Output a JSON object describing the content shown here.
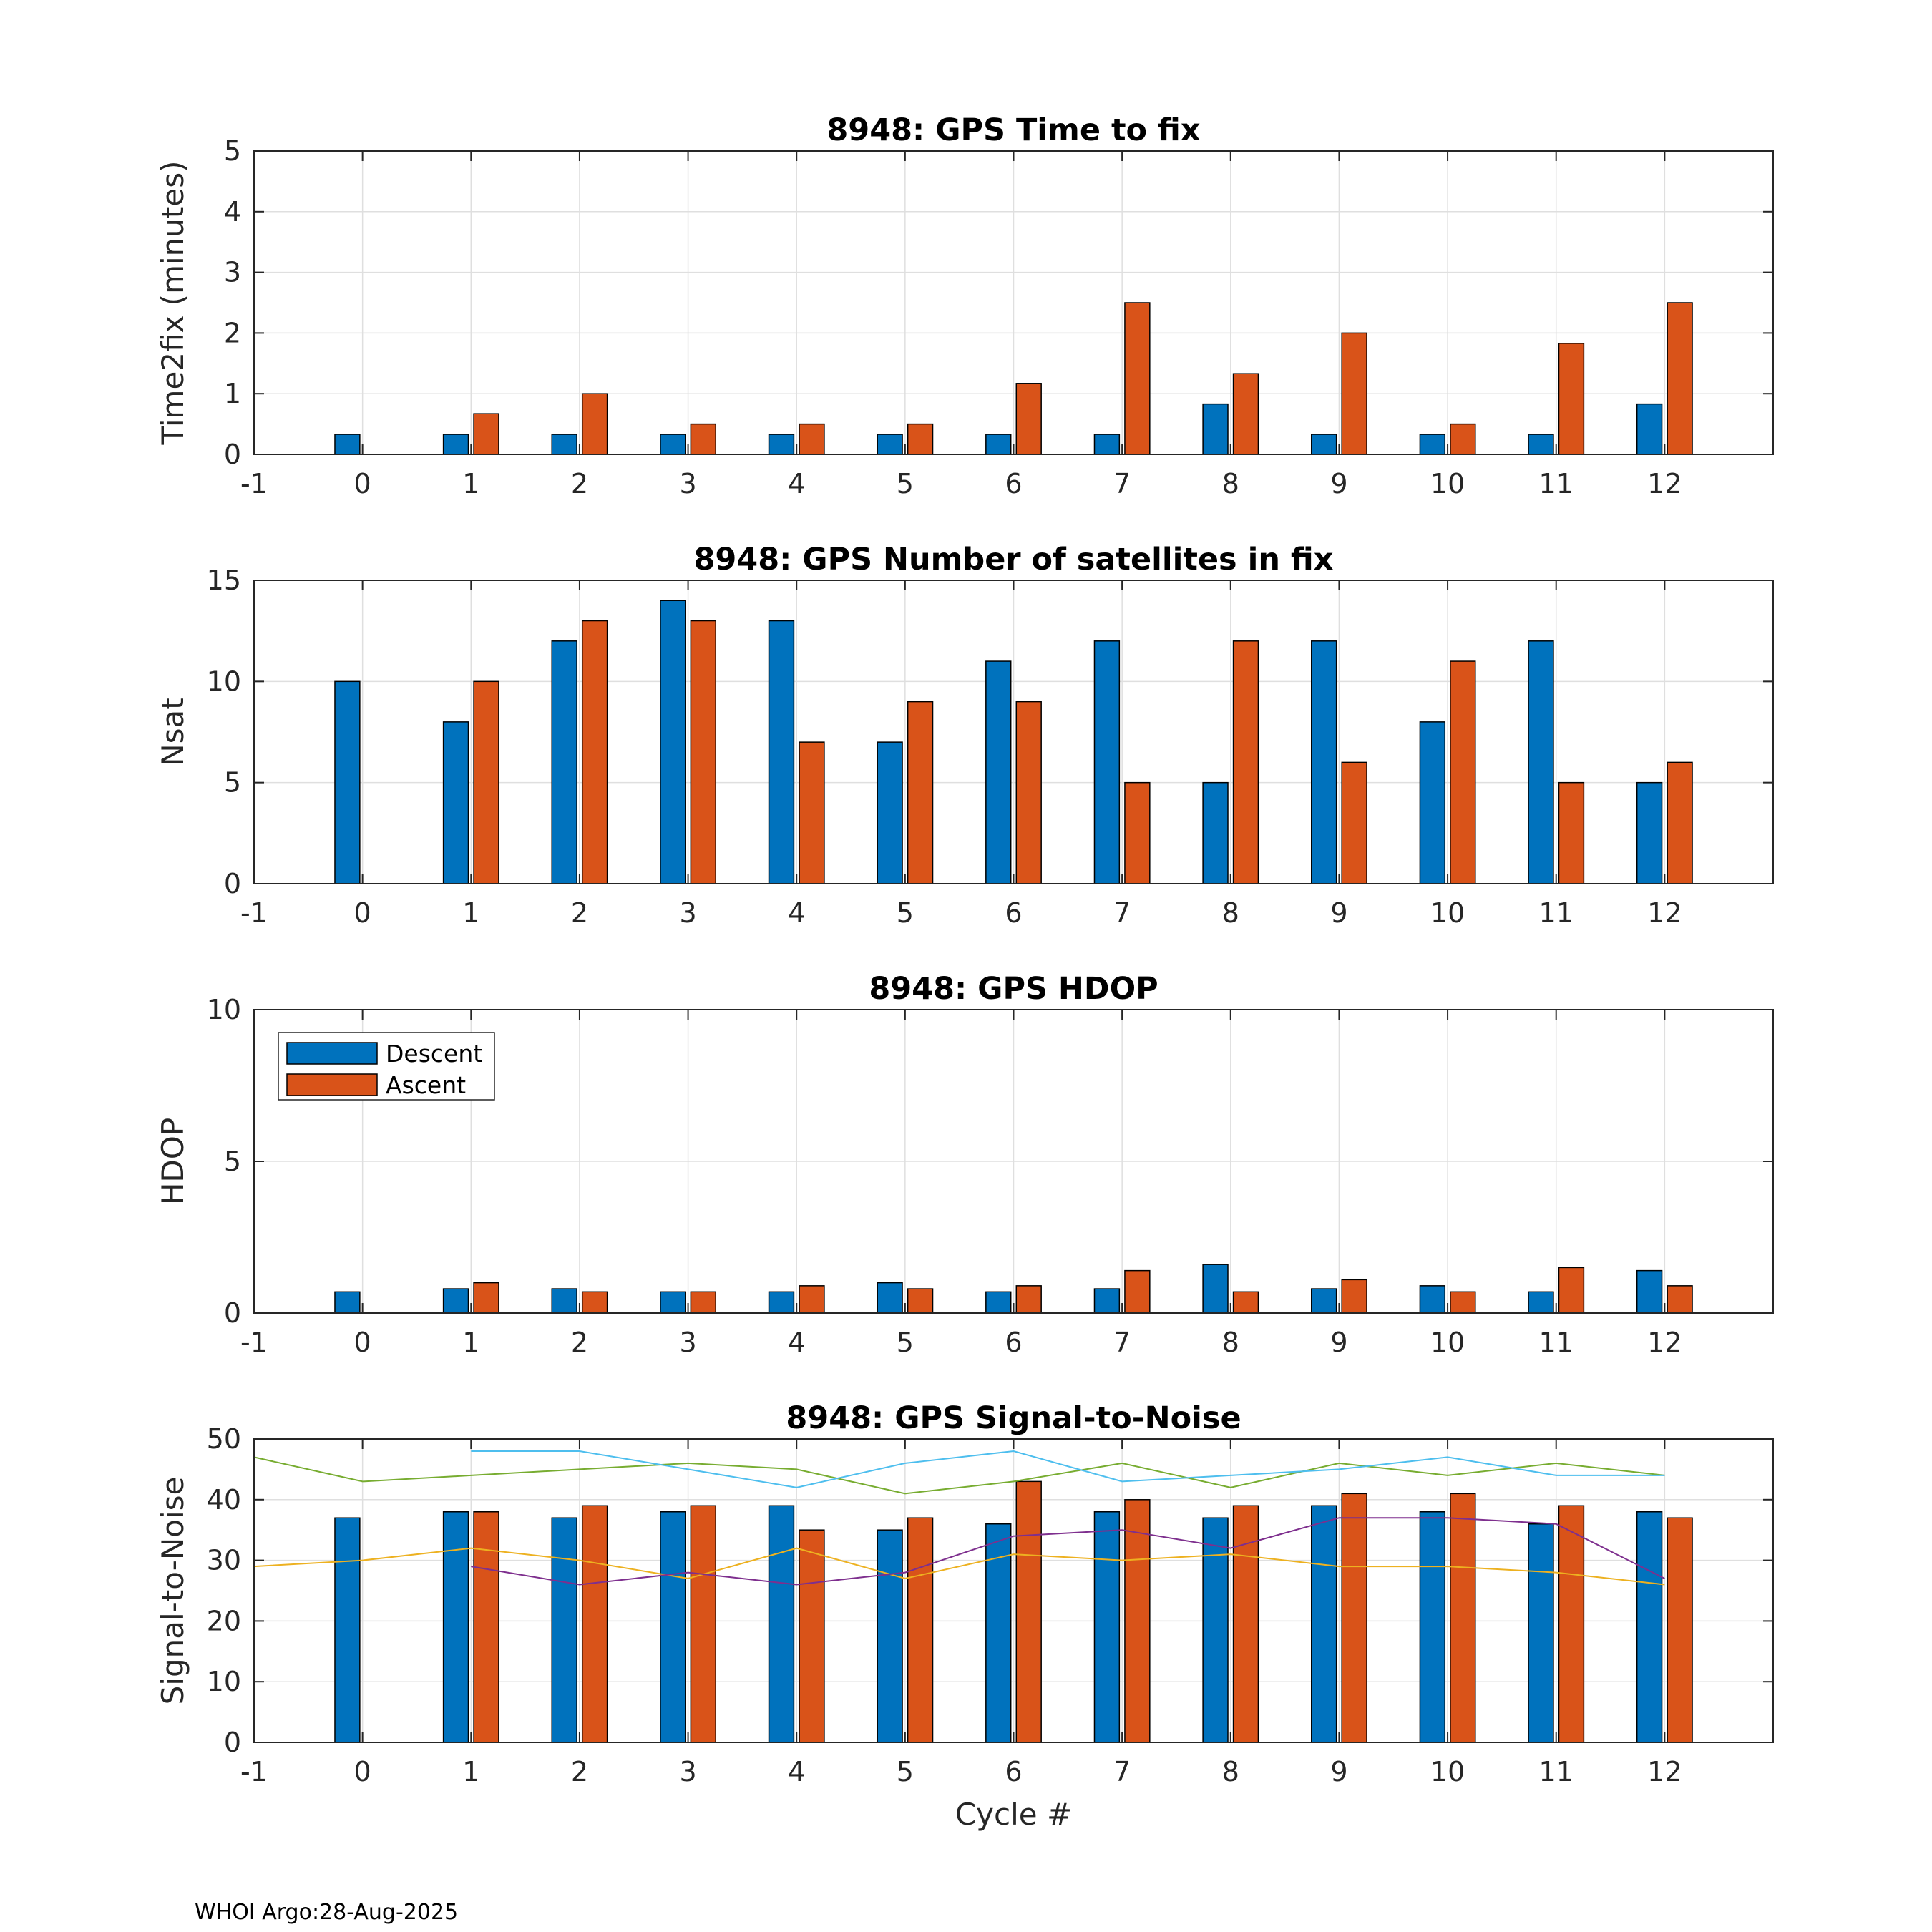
{
  "footer": "WHOI Argo:28-Aug-2025",
  "legend": {
    "descent": "Descent",
    "ascent": "Ascent"
  },
  "colors": {
    "descent": "#0072BD",
    "ascent": "#D95319",
    "snr_lines": [
      "#77AC30",
      "#4DBEEE",
      "#EDB120",
      "#7E2F8E"
    ]
  },
  "chart_data": [
    {
      "type": "bar",
      "title": "8948: GPS Time to fix",
      "xlabel": "",
      "ylabel": "Time2fix (minutes)",
      "x_tick_labels": [
        "-1",
        "0",
        "1",
        "2",
        "3",
        "4",
        "5",
        "6",
        "7",
        "8",
        "9",
        "10",
        "11",
        "12"
      ],
      "y_tick_labels": [
        "0",
        "1",
        "2",
        "3",
        "4",
        "5"
      ],
      "xlim": [
        -1,
        13
      ],
      "ylim": [
        0,
        5
      ],
      "yticks": [
        0,
        1,
        2,
        3,
        4,
        5
      ],
      "categories": [
        0,
        1,
        2,
        3,
        4,
        5,
        6,
        7,
        8,
        9,
        10,
        11,
        12
      ],
      "series": [
        {
          "name": "Descent",
          "values": [
            0.33,
            0.33,
            0.33,
            0.33,
            0.33,
            0.33,
            0.33,
            0.33,
            0.83,
            0.33,
            0.33,
            0.33,
            0.83
          ]
        },
        {
          "name": "Ascent",
          "values": [
            null,
            0.67,
            1.0,
            0.5,
            0.5,
            0.5,
            1.17,
            2.5,
            1.33,
            2.0,
            0.5,
            1.83,
            2.5
          ]
        }
      ]
    },
    {
      "type": "bar",
      "title": "8948: GPS Number of satellites in fix",
      "xlabel": "",
      "ylabel": "Nsat",
      "x_tick_labels": [
        "-1",
        "0",
        "1",
        "2",
        "3",
        "4",
        "5",
        "6",
        "7",
        "8",
        "9",
        "10",
        "11",
        "12"
      ],
      "y_tick_labels": [
        "0",
        "5",
        "10",
        "15"
      ],
      "xlim": [
        -1,
        13
      ],
      "ylim": [
        0,
        15
      ],
      "yticks": [
        0,
        5,
        10,
        15
      ],
      "categories": [
        0,
        1,
        2,
        3,
        4,
        5,
        6,
        7,
        8,
        9,
        10,
        11,
        12
      ],
      "series": [
        {
          "name": "Descent",
          "values": [
            10,
            8,
            12,
            14,
            13,
            7,
            11,
            12,
            5,
            12,
            8,
            12,
            5
          ]
        },
        {
          "name": "Ascent",
          "values": [
            null,
            10,
            13,
            13,
            7,
            9,
            9,
            5,
            12,
            6,
            11,
            5,
            6
          ]
        }
      ]
    },
    {
      "type": "bar",
      "title": "8948: GPS HDOP",
      "xlabel": "",
      "ylabel": "HDOP",
      "x_tick_labels": [
        "-1",
        "0",
        "1",
        "2",
        "3",
        "4",
        "5",
        "6",
        "7",
        "8",
        "9",
        "10",
        "11",
        "12"
      ],
      "y_tick_labels": [
        "0",
        "5",
        "10"
      ],
      "xlim": [
        -1,
        13
      ],
      "ylim": [
        0,
        10
      ],
      "yticks": [
        0,
        5,
        10
      ],
      "legend": true,
      "categories": [
        0,
        1,
        2,
        3,
        4,
        5,
        6,
        7,
        8,
        9,
        10,
        11,
        12
      ],
      "series": [
        {
          "name": "Descent",
          "values": [
            0.7,
            0.8,
            0.8,
            0.7,
            0.7,
            1.0,
            0.7,
            0.8,
            1.6,
            0.8,
            0.9,
            0.7,
            1.4
          ]
        },
        {
          "name": "Ascent",
          "values": [
            null,
            1.0,
            0.7,
            0.7,
            0.9,
            0.8,
            0.9,
            1.4,
            0.7,
            1.1,
            0.7,
            1.5,
            0.9
          ]
        }
      ]
    },
    {
      "type": "bar",
      "title": "8948: GPS Signal-to-Noise",
      "xlabel": "Cycle #",
      "ylabel": "Signal-to-Noise",
      "x_tick_labels": [
        "-1",
        "0",
        "1",
        "2",
        "3",
        "4",
        "5",
        "6",
        "7",
        "8",
        "9",
        "10",
        "11",
        "12"
      ],
      "y_tick_labels": [
        "0",
        "10",
        "20",
        "30",
        "40",
        "50"
      ],
      "xlim": [
        -1,
        13
      ],
      "ylim": [
        0,
        50
      ],
      "yticks": [
        0,
        10,
        20,
        30,
        40,
        50
      ],
      "categories": [
        0,
        1,
        2,
        3,
        4,
        5,
        6,
        7,
        8,
        9,
        10,
        11,
        12
      ],
      "series": [
        {
          "name": "Descent",
          "values": [
            37,
            38,
            37,
            38,
            39,
            35,
            36,
            38,
            37,
            39,
            38,
            36,
            38
          ]
        },
        {
          "name": "Ascent",
          "values": [
            null,
            38,
            39,
            39,
            35,
            37,
            43,
            40,
            39,
            41,
            41,
            39,
            37
          ]
        }
      ],
      "lines": [
        {
          "x": [
            -1,
            0,
            1,
            2,
            3,
            4,
            5,
            6,
            7,
            8,
            9,
            10,
            11,
            12
          ],
          "values": [
            47,
            43,
            44,
            45,
            46,
            45,
            41,
            43,
            46,
            42,
            46,
            44,
            46,
            44
          ]
        },
        {
          "x": [
            1,
            2,
            3,
            4,
            5,
            6,
            7,
            8,
            9,
            10,
            11,
            12
          ],
          "values": [
            48,
            48,
            45,
            42,
            46,
            48,
            43,
            44,
            45,
            47,
            44,
            44
          ]
        },
        {
          "x": [
            -1,
            0,
            1,
            2,
            3,
            4,
            5,
            6,
            7,
            8,
            9,
            10,
            11,
            12
          ],
          "values": [
            29,
            30,
            32,
            30,
            27,
            32,
            27,
            31,
            30,
            31,
            29,
            29,
            28,
            26
          ]
        },
        {
          "x": [
            1,
            2,
            3,
            4,
            5,
            6,
            7,
            8,
            9,
            10,
            11,
            12
          ],
          "values": [
            29,
            26,
            28,
            26,
            28,
            34,
            35,
            32,
            37,
            37,
            36,
            27
          ]
        }
      ]
    }
  ]
}
